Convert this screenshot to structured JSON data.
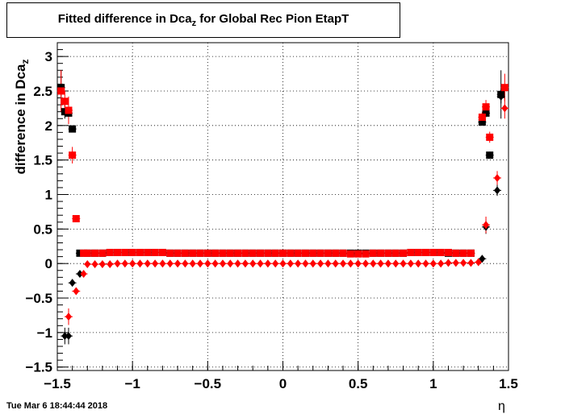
{
  "header": {
    "title_main": "Fitted difference in Dca",
    "title_sub": "z",
    "title_rest": " for Global Rec Pion EtapT"
  },
  "footer": {
    "timestamp": "Tue Mar  6 18:44:44 2018"
  },
  "chart_data": {
    "type": "scatter",
    "title": "Fitted difference in Dca_z for Global Rec Pion EtapT",
    "xlabel": "η",
    "ylabel": "difference in Dca_z",
    "xlim": [
      -1.5,
      1.5
    ],
    "ylim": [
      -1.55,
      3.2
    ],
    "grid": true,
    "x_ticks": [
      -1.5,
      -1,
      -0.5,
      0,
      0.5,
      1,
      1.5
    ],
    "x_tick_labels": [
      "−1.5",
      "−1",
      "−0.5",
      "0",
      "0.5",
      "1",
      "1.5"
    ],
    "y_ticks": [
      -1.5,
      -1,
      -0.5,
      0,
      0.5,
      1,
      1.5,
      2,
      2.5,
      3
    ],
    "y_tick_labels": [
      "−1.5",
      "−1",
      "−0.5",
      "0",
      "0.5",
      "1",
      "1.5",
      "2",
      "2.5",
      "3"
    ],
    "series": [
      {
        "marker": "square",
        "color": "#000000",
        "points": [
          {
            "x": -1.475,
            "y": 2.55,
            "err": 0.25
          },
          {
            "x": -1.45,
            "y": 2.2,
            "err": 0.1
          },
          {
            "x": -1.425,
            "y": 2.18,
            "err": 0.05
          },
          {
            "x": -1.4,
            "y": 1.95,
            "err": 0.05
          },
          {
            "x": -1.35,
            "y": 0.15
          },
          {
            "x": -1.3,
            "y": 0.15
          },
          {
            "x": -1.25,
            "y": 0.15
          },
          {
            "x": -1.2,
            "y": 0.15
          },
          {
            "x": -1.15,
            "y": 0.16
          },
          {
            "x": -1.1,
            "y": 0.16
          },
          {
            "x": -1.05,
            "y": 0.16
          },
          {
            "x": -1.0,
            "y": 0.16
          },
          {
            "x": -0.95,
            "y": 0.16
          },
          {
            "x": -0.9,
            "y": 0.16
          },
          {
            "x": -0.85,
            "y": 0.16
          },
          {
            "x": -0.8,
            "y": 0.16
          },
          {
            "x": -0.75,
            "y": 0.15
          },
          {
            "x": -0.7,
            "y": 0.15
          },
          {
            "x": -0.65,
            "y": 0.15
          },
          {
            "x": -0.6,
            "y": 0.15
          },
          {
            "x": -0.55,
            "y": 0.15
          },
          {
            "x": -0.5,
            "y": 0.15
          },
          {
            "x": -0.45,
            "y": 0.15
          },
          {
            "x": -0.4,
            "y": 0.15
          },
          {
            "x": -0.35,
            "y": 0.15
          },
          {
            "x": -0.3,
            "y": 0.15
          },
          {
            "x": -0.25,
            "y": 0.15
          },
          {
            "x": -0.2,
            "y": 0.15
          },
          {
            "x": -0.15,
            "y": 0.15
          },
          {
            "x": -0.1,
            "y": 0.15
          },
          {
            "x": -0.05,
            "y": 0.15
          },
          {
            "x": 0.0,
            "y": 0.15
          },
          {
            "x": 0.05,
            "y": 0.15
          },
          {
            "x": 0.1,
            "y": 0.15
          },
          {
            "x": 0.15,
            "y": 0.15
          },
          {
            "x": 0.2,
            "y": 0.15
          },
          {
            "x": 0.25,
            "y": 0.15
          },
          {
            "x": 0.3,
            "y": 0.15
          },
          {
            "x": 0.35,
            "y": 0.15
          },
          {
            "x": 0.4,
            "y": 0.15
          },
          {
            "x": 0.45,
            "y": 0.15
          },
          {
            "x": 0.5,
            "y": 0.15
          },
          {
            "x": 0.55,
            "y": 0.15
          },
          {
            "x": 0.6,
            "y": 0.15
          },
          {
            "x": 0.65,
            "y": 0.15
          },
          {
            "x": 0.7,
            "y": 0.15
          },
          {
            "x": 0.75,
            "y": 0.15
          },
          {
            "x": 0.8,
            "y": 0.15
          },
          {
            "x": 0.85,
            "y": 0.16
          },
          {
            "x": 0.9,
            "y": 0.16
          },
          {
            "x": 0.95,
            "y": 0.16
          },
          {
            "x": 1.0,
            "y": 0.16
          },
          {
            "x": 1.05,
            "y": 0.16
          },
          {
            "x": 1.1,
            "y": 0.15
          },
          {
            "x": 1.15,
            "y": 0.15
          },
          {
            "x": 1.2,
            "y": 0.15
          },
          {
            "x": 1.25,
            "y": 0.15
          },
          {
            "x": 1.325,
            "y": 2.05,
            "err": 0.05
          },
          {
            "x": 1.35,
            "y": 2.18,
            "err": 0.05
          },
          {
            "x": 1.375,
            "y": 1.57,
            "err": 0.05
          },
          {
            "x": 1.45,
            "y": 2.45,
            "err": 0.35
          }
        ]
      },
      {
        "marker": "square",
        "color": "#ff0000",
        "points": [
          {
            "x": -1.475,
            "y": 2.5,
            "err": 0.3
          },
          {
            "x": -1.45,
            "y": 2.35,
            "err": 0.15
          },
          {
            "x": -1.425,
            "y": 2.22,
            "err": 0.2
          },
          {
            "x": -1.4,
            "y": 1.57,
            "err": 0.12
          },
          {
            "x": -1.375,
            "y": 0.65
          },
          {
            "x": -1.325,
            "y": 0.15
          },
          {
            "x": -1.3,
            "y": 0.15
          },
          {
            "x": -1.25,
            "y": 0.15
          },
          {
            "x": -1.2,
            "y": 0.15
          },
          {
            "x": -1.15,
            "y": 0.16
          },
          {
            "x": -1.1,
            "y": 0.16
          },
          {
            "x": -1.05,
            "y": 0.16
          },
          {
            "x": -1.0,
            "y": 0.16
          },
          {
            "x": -0.95,
            "y": 0.16
          },
          {
            "x": -0.9,
            "y": 0.16
          },
          {
            "x": -0.85,
            "y": 0.16
          },
          {
            "x": -0.8,
            "y": 0.16
          },
          {
            "x": -0.75,
            "y": 0.15
          },
          {
            "x": -0.7,
            "y": 0.15
          },
          {
            "x": -0.65,
            "y": 0.15
          },
          {
            "x": -0.6,
            "y": 0.15
          },
          {
            "x": -0.55,
            "y": 0.15
          },
          {
            "x": -0.5,
            "y": 0.15
          },
          {
            "x": -0.45,
            "y": 0.15
          },
          {
            "x": -0.4,
            "y": 0.15
          },
          {
            "x": -0.35,
            "y": 0.15
          },
          {
            "x": -0.3,
            "y": 0.15
          },
          {
            "x": -0.25,
            "y": 0.15
          },
          {
            "x": -0.2,
            "y": 0.15
          },
          {
            "x": -0.15,
            "y": 0.15
          },
          {
            "x": -0.1,
            "y": 0.15
          },
          {
            "x": -0.05,
            "y": 0.15
          },
          {
            "x": 0.0,
            "y": 0.15
          },
          {
            "x": 0.05,
            "y": 0.15
          },
          {
            "x": 0.1,
            "y": 0.15
          },
          {
            "x": 0.15,
            "y": 0.15
          },
          {
            "x": 0.2,
            "y": 0.15
          },
          {
            "x": 0.25,
            "y": 0.15
          },
          {
            "x": 0.3,
            "y": 0.15
          },
          {
            "x": 0.35,
            "y": 0.15
          },
          {
            "x": 0.4,
            "y": 0.15
          },
          {
            "x": 0.45,
            "y": 0.14
          },
          {
            "x": 0.5,
            "y": 0.14
          },
          {
            "x": 0.55,
            "y": 0.14
          },
          {
            "x": 0.6,
            "y": 0.15
          },
          {
            "x": 0.65,
            "y": 0.15
          },
          {
            "x": 0.7,
            "y": 0.15
          },
          {
            "x": 0.75,
            "y": 0.15
          },
          {
            "x": 0.8,
            "y": 0.15
          },
          {
            "x": 0.85,
            "y": 0.16
          },
          {
            "x": 0.9,
            "y": 0.16
          },
          {
            "x": 0.95,
            "y": 0.16
          },
          {
            "x": 1.0,
            "y": 0.16
          },
          {
            "x": 1.05,
            "y": 0.16
          },
          {
            "x": 1.1,
            "y": 0.16
          },
          {
            "x": 1.15,
            "y": 0.15
          },
          {
            "x": 1.2,
            "y": 0.15
          },
          {
            "x": 1.25,
            "y": 0.15
          },
          {
            "x": 1.325,
            "y": 2.12,
            "err": 0.08
          },
          {
            "x": 1.35,
            "y": 2.27,
            "err": 0.1
          },
          {
            "x": 1.375,
            "y": 1.83,
            "err": 0.08
          },
          {
            "x": 1.475,
            "y": 2.55,
            "err": 0.2
          }
        ]
      },
      {
        "marker": "diamond",
        "color": "#000000",
        "points": [
          {
            "x": -1.45,
            "y": -1.05,
            "err": 0.12
          },
          {
            "x": -1.425,
            "y": -1.05,
            "err": 0.12
          },
          {
            "x": -1.4,
            "y": -0.28,
            "err": 0.05
          },
          {
            "x": -1.35,
            "y": -0.15,
            "err": 0.03
          },
          {
            "x": 1.325,
            "y": 0.07
          },
          {
            "x": 1.35,
            "y": 0.53,
            "err": 0.1
          },
          {
            "x": 1.425,
            "y": 1.06,
            "err": 0.08
          },
          {
            "x": 1.45,
            "y": 2.42,
            "err": 0.1
          }
        ]
      },
      {
        "marker": "diamond",
        "color": "#ff0000",
        "points": [
          {
            "x": -1.425,
            "y": -0.77,
            "err": 0.12
          },
          {
            "x": -1.375,
            "y": -0.4,
            "err": 0.05
          },
          {
            "x": -1.325,
            "y": -0.15
          },
          {
            "x": -1.3,
            "y": -0.01
          },
          {
            "x": -1.25,
            "y": -0.01
          },
          {
            "x": -1.2,
            "y": -0.01
          },
          {
            "x": -1.15,
            "y": -0.01
          },
          {
            "x": -1.1,
            "y": 0.0
          },
          {
            "x": -1.05,
            "y": 0.0
          },
          {
            "x": -1.0,
            "y": 0.0
          },
          {
            "x": -0.95,
            "y": 0.0
          },
          {
            "x": -0.9,
            "y": 0.0
          },
          {
            "x": -0.85,
            "y": 0.0
          },
          {
            "x": -0.8,
            "y": 0.0
          },
          {
            "x": -0.75,
            "y": 0.0
          },
          {
            "x": -0.7,
            "y": 0.0
          },
          {
            "x": -0.65,
            "y": 0.0
          },
          {
            "x": -0.6,
            "y": 0.0
          },
          {
            "x": -0.55,
            "y": 0.0
          },
          {
            "x": -0.5,
            "y": 0.0
          },
          {
            "x": -0.45,
            "y": 0.0
          },
          {
            "x": -0.4,
            "y": 0.0
          },
          {
            "x": -0.35,
            "y": 0.0
          },
          {
            "x": -0.3,
            "y": 0.0
          },
          {
            "x": -0.25,
            "y": 0.0
          },
          {
            "x": -0.2,
            "y": 0.0
          },
          {
            "x": -0.15,
            "y": 0.0
          },
          {
            "x": -0.1,
            "y": 0.0
          },
          {
            "x": -0.05,
            "y": 0.0
          },
          {
            "x": 0.0,
            "y": 0.0
          },
          {
            "x": 0.05,
            "y": 0.0
          },
          {
            "x": 0.1,
            "y": 0.0
          },
          {
            "x": 0.15,
            "y": 0.0
          },
          {
            "x": 0.2,
            "y": 0.0
          },
          {
            "x": 0.25,
            "y": 0.0
          },
          {
            "x": 0.3,
            "y": 0.0
          },
          {
            "x": 0.35,
            "y": 0.0
          },
          {
            "x": 0.4,
            "y": 0.0
          },
          {
            "x": 0.45,
            "y": 0.0
          },
          {
            "x": 0.5,
            "y": 0.0
          },
          {
            "x": 0.55,
            "y": 0.0
          },
          {
            "x": 0.6,
            "y": 0.0
          },
          {
            "x": 0.65,
            "y": 0.0
          },
          {
            "x": 0.7,
            "y": 0.0
          },
          {
            "x": 0.75,
            "y": 0.0
          },
          {
            "x": 0.8,
            "y": 0.0
          },
          {
            "x": 0.85,
            "y": 0.0
          },
          {
            "x": 0.9,
            "y": 0.0
          },
          {
            "x": 0.95,
            "y": 0.0
          },
          {
            "x": 1.0,
            "y": 0.0
          },
          {
            "x": 1.05,
            "y": 0.0
          },
          {
            "x": 1.1,
            "y": 0.01
          },
          {
            "x": 1.15,
            "y": 0.01
          },
          {
            "x": 1.2,
            "y": 0.01
          },
          {
            "x": 1.25,
            "y": 0.01
          },
          {
            "x": 1.3,
            "y": 0.02
          },
          {
            "x": 1.35,
            "y": 0.56,
            "err": 0.12
          },
          {
            "x": 1.425,
            "y": 1.24,
            "err": 0.1
          },
          {
            "x": 1.475,
            "y": 2.25,
            "err": 0.15
          }
        ]
      }
    ]
  }
}
